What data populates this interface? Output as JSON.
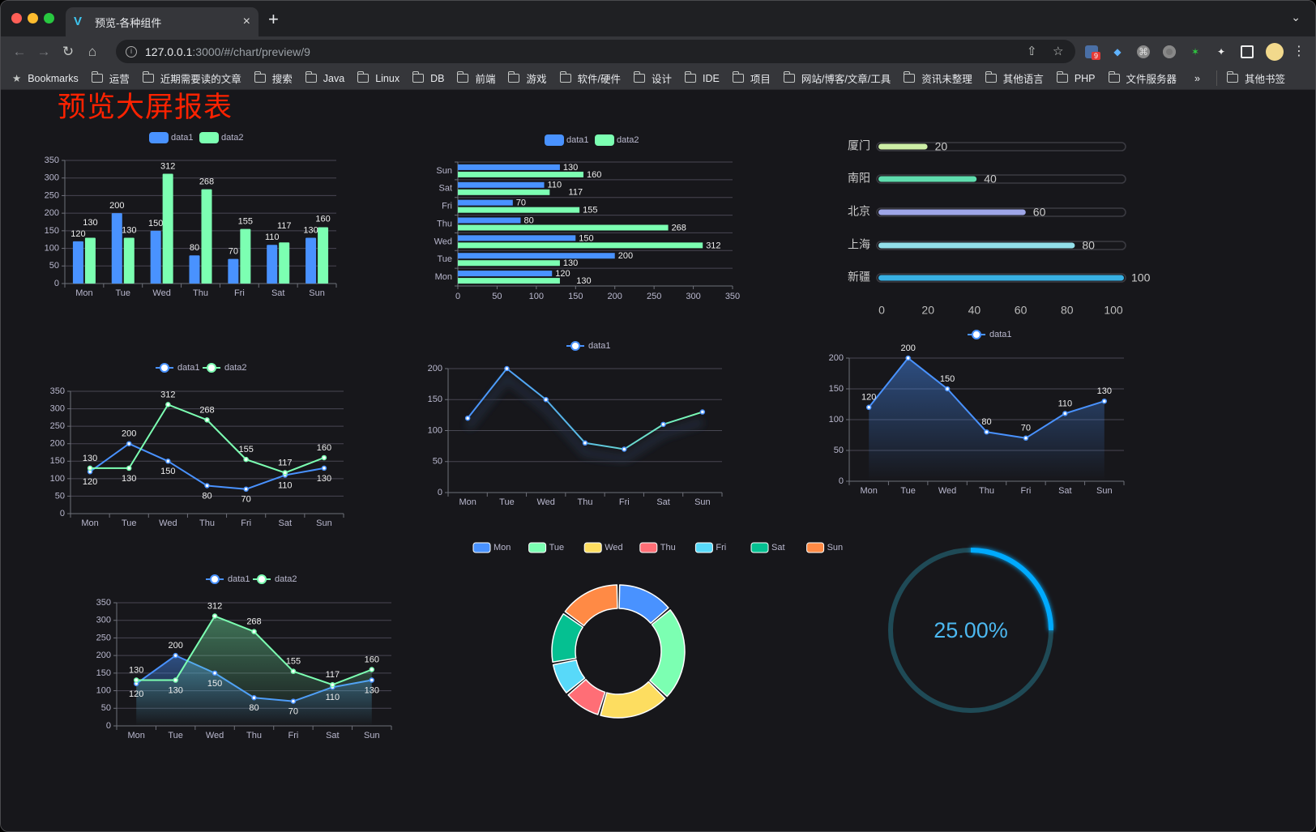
{
  "browser": {
    "tab_title": "预览-各种组件",
    "close_glyph": "×",
    "new_tab_glyph": "+",
    "url_host": "127.0.0.1",
    "url_rest": ":3000/#/chart/preview/9",
    "extension_badge": "9",
    "bookmarks_label": "Bookmarks",
    "bookmark_folders": [
      "运营",
      "近期需要读的文章",
      "搜索",
      "Java",
      "Linux",
      "DB",
      "前端",
      "游戏",
      "软件/硬件",
      "设计",
      "IDE",
      "项目",
      "网站/博客/文章/工具",
      "资讯未整理",
      "其他语言",
      "PHP",
      "文件服务器"
    ],
    "more_glyph": "»",
    "other_bookmarks": "其他书签"
  },
  "page": {
    "title": "预览大屏报表"
  },
  "colors": {
    "data1": "#4992ff",
    "data2": "#7cffb2",
    "background": "#17171b",
    "title": "#ff2200",
    "gauge": "#00aaff"
  },
  "chart_data": [
    {
      "type": "bar",
      "categories": [
        "Mon",
        "Tue",
        "Wed",
        "Thu",
        "Fri",
        "Sat",
        "Sun"
      ],
      "series": [
        {
          "name": "data1",
          "values": [
            120,
            200,
            150,
            80,
            70,
            110,
            130
          ]
        },
        {
          "name": "data2",
          "values": [
            130,
            130,
            312,
            268,
            155,
            117,
            160
          ]
        }
      ],
      "ylim": [
        0,
        350
      ],
      "yticks": [
        "0",
        "50",
        "100",
        "150",
        "200",
        "250",
        "300",
        "350"
      ],
      "grid": true,
      "legend": "top",
      "data_labels": true
    },
    {
      "type": "bar",
      "orientation": "horizontal",
      "categories": [
        "Mon",
        "Tue",
        "Wed",
        "Thu",
        "Fri",
        "Sat",
        "Sun"
      ],
      "series": [
        {
          "name": "data1",
          "values": [
            120,
            200,
            150,
            80,
            70,
            110,
            130
          ]
        },
        {
          "name": "data2",
          "values": [
            130,
            130,
            312,
            268,
            155,
            117,
            160
          ]
        }
      ],
      "xlim": [
        0,
        350
      ],
      "xticks": [
        "0",
        "50",
        "100",
        "150",
        "200",
        "250",
        "300",
        "350"
      ],
      "grid": true,
      "legend": "top",
      "data_labels": true
    },
    {
      "type": "bar",
      "orientation": "horizontal",
      "style": "progress",
      "categories": [
        "厦门",
        "南阳",
        "北京",
        "上海",
        "新疆"
      ],
      "values": [
        20,
        40,
        60,
        80,
        100
      ],
      "colors": [
        "#cdeea6",
        "#5fdcae",
        "#9ea6e8",
        "#93e0ea",
        "#38b0e3"
      ],
      "xlim": [
        0,
        100
      ],
      "xticks": [
        "0",
        "20",
        "40",
        "60",
        "80",
        "100"
      ],
      "data_labels": true
    },
    {
      "type": "line",
      "categories": [
        "Mon",
        "Tue",
        "Wed",
        "Thu",
        "Fri",
        "Sat",
        "Sun"
      ],
      "series": [
        {
          "name": "data1",
          "values": [
            120,
            200,
            150,
            80,
            70,
            110,
            130
          ]
        },
        {
          "name": "data2",
          "values": [
            130,
            130,
            312,
            268,
            155,
            117,
            160
          ]
        }
      ],
      "ylim": [
        0,
        350
      ],
      "yticks": [
        "0",
        "50",
        "100",
        "150",
        "200",
        "250",
        "300",
        "350"
      ],
      "grid": true,
      "legend": "top",
      "data_labels": true
    },
    {
      "type": "line",
      "categories": [
        "Mon",
        "Tue",
        "Wed",
        "Thu",
        "Fri",
        "Sat",
        "Sun"
      ],
      "series": [
        {
          "name": "data1",
          "values": [
            120,
            200,
            150,
            80,
            70,
            110,
            130
          ]
        }
      ],
      "ylim": [
        0,
        200
      ],
      "yticks": [
        "0",
        "50",
        "100",
        "150",
        "200"
      ],
      "grid": true,
      "legend": "top",
      "line_gradient": [
        "#4992ff",
        "#7cffb2"
      ],
      "shadow": true
    },
    {
      "type": "area",
      "categories": [
        "Mon",
        "Tue",
        "Wed",
        "Thu",
        "Fri",
        "Sat",
        "Sun"
      ],
      "series": [
        {
          "name": "data1",
          "values": [
            120,
            200,
            150,
            80,
            70,
            110,
            130
          ]
        }
      ],
      "ylim": [
        0,
        200
      ],
      "yticks": [
        "0",
        "50",
        "100",
        "150",
        "200"
      ],
      "grid": true,
      "legend": "top",
      "data_labels": true
    },
    {
      "type": "area",
      "categories": [
        "Mon",
        "Tue",
        "Wed",
        "Thu",
        "Fri",
        "Sat",
        "Sun"
      ],
      "series": [
        {
          "name": "data1",
          "values": [
            120,
            200,
            150,
            80,
            70,
            110,
            130
          ]
        },
        {
          "name": "data2",
          "values": [
            130,
            130,
            312,
            268,
            155,
            117,
            160
          ]
        }
      ],
      "ylim": [
        0,
        350
      ],
      "yticks": [
        "0",
        "50",
        "100",
        "150",
        "200",
        "250",
        "300",
        "350"
      ],
      "grid": true,
      "legend": "top",
      "data_labels": true
    },
    {
      "type": "pie",
      "style": "donut",
      "categories": [
        "Mon",
        "Tue",
        "Wed",
        "Thu",
        "Fri",
        "Sat",
        "Sun"
      ],
      "values": [
        120,
        200,
        150,
        80,
        70,
        110,
        130
      ],
      "colors": [
        "#4992ff",
        "#7cffb2",
        "#fddd60",
        "#ff6e76",
        "#58d9f9",
        "#05c091",
        "#ff8a45"
      ],
      "legend": "top"
    },
    {
      "type": "gauge",
      "style": "progress-ring",
      "value": 25,
      "label": "25.00%",
      "color": "#00aaff",
      "track_color": "#1f4a56"
    }
  ]
}
